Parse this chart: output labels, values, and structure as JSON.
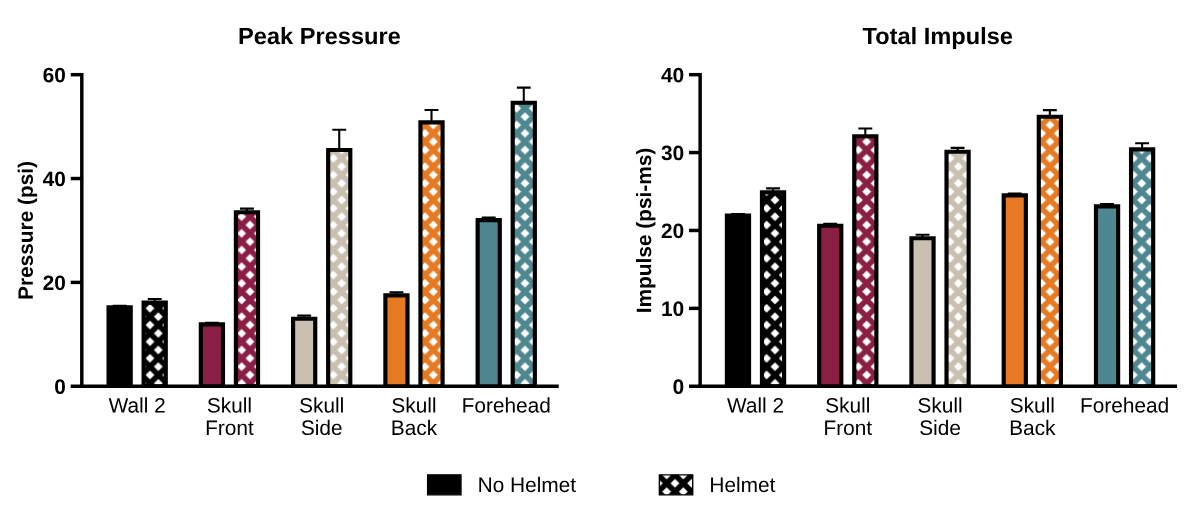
{
  "chart_data": [
    {
      "type": "bar",
      "title": "Peak Pressure",
      "ylabel": "Pressure (psi)",
      "categories": [
        "Wall 2",
        "Skull\nFront",
        "Skull\nSide",
        "Skull\nBack",
        "Forehead"
      ],
      "ylim": [
        0,
        60
      ],
      "yticks": [
        0,
        20,
        40,
        60
      ],
      "grid": false,
      "legend": "bottom",
      "series": [
        {
          "name": "No Helmet",
          "color": "#000000",
          "colors": [
            "#000000",
            "#8b1e45",
            "#c9c0b2",
            "#e67a22",
            "#4f8790"
          ],
          "values": [
            15.2,
            11.9,
            13.0,
            17.5,
            32.0
          ],
          "errors": [
            0.3,
            0.3,
            0.6,
            0.6,
            0.5
          ]
        },
        {
          "name": "Helmet",
          "color": "#000000",
          "colors": [
            "#000000",
            "#8b1e45",
            "#c9c0b2",
            "#e67a22",
            "#4f8790"
          ],
          "values": [
            16.1,
            33.5,
            45.5,
            50.8,
            54.6
          ],
          "errors": [
            0.7,
            0.7,
            3.9,
            2.4,
            2.9
          ]
        }
      ]
    },
    {
      "type": "bar",
      "title": "Total Impulse",
      "ylabel": "Impulse (psi-ms)",
      "categories": [
        "Wall 2",
        "Skull\nFront",
        "Skull\nSide",
        "Skull\nBack",
        "Forehead"
      ],
      "ylim": [
        0,
        40
      ],
      "yticks": [
        0,
        10,
        20,
        30,
        40
      ],
      "grid": false,
      "series": [
        {
          "colors": [
            "#000000",
            "#8b1e45",
            "#c9c0b2",
            "#e67a22",
            "#4f8790"
          ],
          "values": [
            21.9,
            20.6,
            19.0,
            24.5,
            23.1
          ],
          "errors": [
            0.2,
            0.25,
            0.45,
            0.25,
            0.3
          ]
        },
        {
          "colors": [
            "#000000",
            "#8b1e45",
            "#c9c0b2",
            "#e67a22",
            "#4f8790"
          ],
          "values": [
            24.9,
            32.1,
            30.1,
            34.6,
            30.4
          ],
          "errors": [
            0.5,
            1.0,
            0.5,
            0.85,
            0.8
          ]
        }
      ]
    }
  ]
}
